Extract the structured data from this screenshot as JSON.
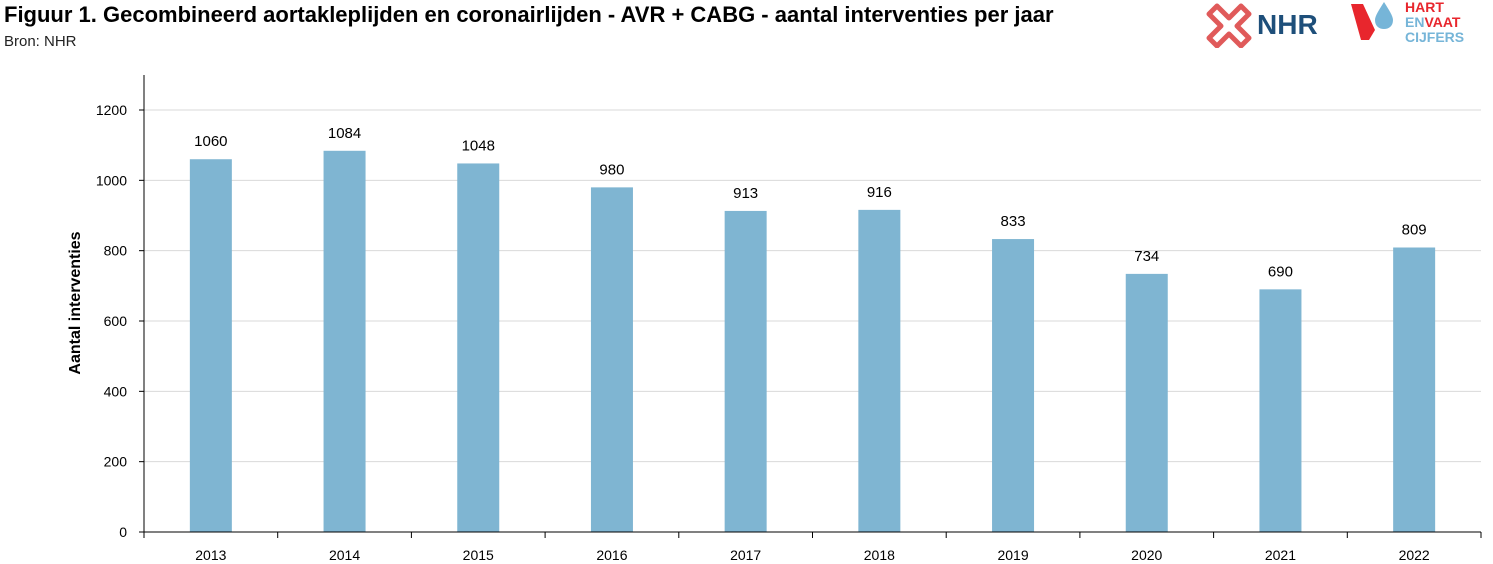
{
  "header": {
    "title": "Figuur 1. Gecombineerd aortakleplijden en coronairlijden - AVR + CABG - aantal interventies per jaar",
    "source": "Bron: NHR"
  },
  "logos": {
    "nhr": "NHR",
    "hvc_line1": "HART",
    "hvc_line2_a": "EN",
    "hvc_line2_b": "VAAT",
    "hvc_line3": "CIJFERS"
  },
  "colors": {
    "bar": "#7fb5d2",
    "grid": "#d9d9d9",
    "nhr_red": "#e05a5a",
    "nhr_blue": "#1e4f7a",
    "hvc_red": "#e8262d",
    "hvc_blue": "#76b5d8"
  },
  "chart_data": {
    "type": "bar",
    "title": "Figuur 1. Gecombineerd aortakleplijden en coronairlijden - AVR + CABG - aantal interventies per jaar",
    "xlabel": "",
    "ylabel": "Aantal interventies",
    "categories": [
      "2013",
      "2014",
      "2015",
      "2016",
      "2017",
      "2018",
      "2019",
      "2020",
      "2021",
      "2022"
    ],
    "values": [
      1060,
      1084,
      1048,
      980,
      913,
      916,
      833,
      734,
      690,
      809
    ],
    "ylim": [
      0,
      1300
    ],
    "yticks": [
      0,
      200,
      400,
      600,
      800,
      1000,
      1200
    ],
    "grid": true,
    "legend": "none",
    "data_labels": true
  }
}
